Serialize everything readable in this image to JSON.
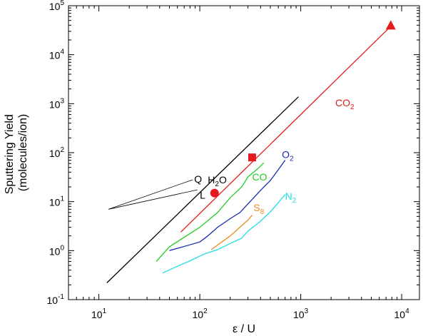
{
  "chart_data": {
    "type": "line",
    "title": "",
    "xlabel": "ε / U",
    "ylabel_line1": "Sputtering Yield",
    "ylabel_line2": "(molecules/ion)",
    "xscale": "log",
    "yscale": "log",
    "xlim": [
      5,
      15000
    ],
    "ylim": [
      0.1,
      100000
    ],
    "grid": false,
    "legend": "none",
    "x_tick_labels": [
      {
        "value": 10,
        "base": "10",
        "exp": "1"
      },
      {
        "value": 100,
        "base": "10",
        "exp": "2"
      },
      {
        "value": 1000,
        "base": "10",
        "exp": "3"
      },
      {
        "value": 10000,
        "base": "10",
        "exp": "4"
      }
    ],
    "y_tick_labels": [
      {
        "value": 0.1,
        "base": "10",
        "exp": "-1"
      },
      {
        "value": 1,
        "base": "10",
        "exp": "0"
      },
      {
        "value": 10,
        "base": "10",
        "exp": "1"
      },
      {
        "value": 100,
        "base": "10",
        "exp": "2"
      },
      {
        "value": 1000,
        "base": "10",
        "exp": "3"
      },
      {
        "value": 10000,
        "base": "10",
        "exp": "4"
      },
      {
        "value": 100000,
        "base": "10",
        "exp": "5"
      }
    ],
    "series": [
      {
        "key": "h2o",
        "label_main": "H",
        "label_sub": "2",
        "label_tail": "O",
        "color": "#000000",
        "x": [
          12,
          950
        ],
        "y": [
          0.22,
          1380
        ],
        "label_at": [
          120,
          28
        ]
      },
      {
        "key": "co2",
        "label_main": "CO",
        "label_sub": "2",
        "label_tail": "",
        "color": "#e41a1c",
        "x": [
          65,
          8000
        ],
        "y": [
          2.4,
          40000
        ],
        "label_at": [
          2200,
          1050
        ]
      },
      {
        "key": "co",
        "label_main": "CO",
        "label_sub": "",
        "label_tail": "",
        "color": "#22cc22",
        "x": [
          37,
          50,
          100,
          150,
          200,
          260,
          300,
          380,
          430
        ],
        "y": [
          0.6,
          1.2,
          3.0,
          6.0,
          12.0,
          20.0,
          32.0,
          48.0,
          62.0
        ],
        "label_at": [
          330,
          32
        ]
      },
      {
        "key": "o2",
        "label_main": "O",
        "label_sub": "2",
        "label_tail": "",
        "color": "#1a2ab0",
        "x": [
          50,
          100,
          120,
          150,
          200,
          250,
          300,
          400,
          500,
          600,
          700
        ],
        "y": [
          1.0,
          1.5,
          2.0,
          3.0,
          4.5,
          6.0,
          9.0,
          17.0,
          27.0,
          45.0,
          70.0
        ],
        "label_at": [
          650,
          92
        ]
      },
      {
        "key": "s8",
        "label_main": "S",
        "label_sub": "8",
        "label_tail": "",
        "color": "#e88a20",
        "x": [
          130,
          200,
          300,
          330
        ],
        "y": [
          1.05,
          2.0,
          4.2,
          5.3
        ],
        "label_at": [
          340,
          7.5
        ]
      },
      {
        "key": "n2",
        "label_main": "N",
        "label_sub": "2",
        "label_tail": "",
        "color": "#22dde0",
        "x": [
          43,
          60,
          80,
          110,
          150,
          200,
          260,
          300,
          400,
          500,
          600,
          700
        ],
        "y": [
          0.35,
          0.48,
          0.62,
          0.85,
          1.05,
          1.4,
          1.8,
          2.5,
          4.0,
          6.2,
          9.5,
          14.0
        ],
        "label_at": [
          700,
          13
        ]
      }
    ],
    "markers": [
      {
        "shape": "circle",
        "x": 140,
        "y": 15.0,
        "color": "#e41a1c"
      },
      {
        "shape": "square",
        "x": 330,
        "y": 80.0,
        "color": "#e41a1c"
      },
      {
        "shape": "triangle",
        "x": 7800,
        "y": 40000.0,
        "color": "#e41a1c"
      }
    ],
    "slope_guides": [
      {
        "label": "Q",
        "x": [
          12.5,
          85
        ],
        "y": [
          7.0,
          28.0
        ],
        "label_at": [
          88,
          30
        ]
      },
      {
        "label": "L",
        "x": [
          12.5,
          95
        ],
        "y": [
          7.0,
          17.5
        ],
        "label_at": [
          100,
          14
        ]
      }
    ]
  }
}
